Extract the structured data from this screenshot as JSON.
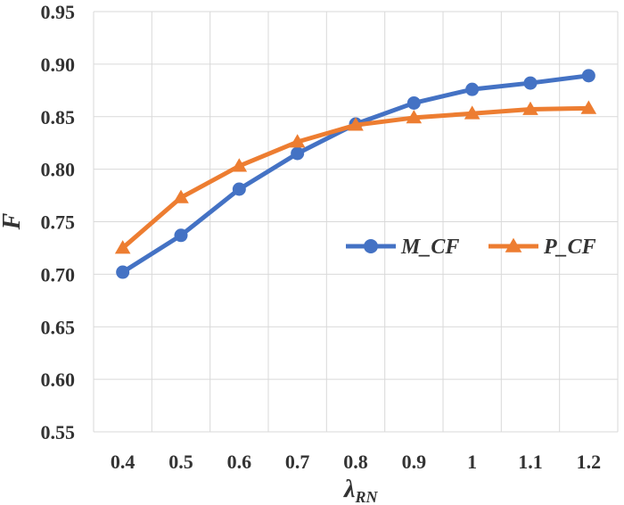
{
  "chart_data": {
    "type": "line",
    "title": "",
    "xlabel": "λ",
    "xlabel_subscript": "RN",
    "ylabel": "F",
    "categories": [
      "0.4",
      "0.5",
      "0.6",
      "0.7",
      "0.8",
      "0.9",
      "1",
      "1.1",
      "1.2"
    ],
    "ylim": [
      0.55,
      0.95
    ],
    "yticks": [
      "0.55",
      "0.60",
      "0.65",
      "0.70",
      "0.75",
      "0.80",
      "0.85",
      "0.90",
      "0.95"
    ],
    "grid": true,
    "legend": "center-right",
    "series": [
      {
        "name": "M_CF",
        "marker": "circle",
        "color": "#4472c4",
        "values": [
          0.702,
          0.737,
          0.781,
          0.815,
          0.843,
          0.863,
          0.876,
          0.882,
          0.889
        ]
      },
      {
        "name": "P_CF",
        "marker": "triangle",
        "color": "#ed7d31",
        "values": [
          0.725,
          0.773,
          0.803,
          0.826,
          0.842,
          0.849,
          0.853,
          0.857,
          0.858
        ]
      }
    ]
  }
}
